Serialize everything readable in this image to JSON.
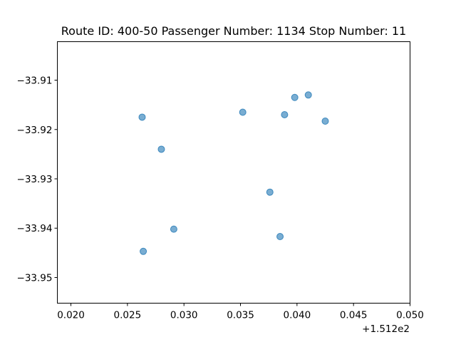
{
  "chart_data": {
    "type": "scatter",
    "title": "Route ID: 400-50  Passenger Number: 1134  Stop Number: 11",
    "xlabel": "",
    "ylabel": "",
    "x_offset_label": "+1.512e2",
    "xlim": [
      0.0188,
      0.05
    ],
    "ylim": [
      -33.9552,
      -33.9022
    ],
    "x_ticks": [
      0.02,
      0.025,
      0.03,
      0.035,
      0.04,
      0.045,
      0.05
    ],
    "x_tick_labels": [
      "0.020",
      "0.025",
      "0.030",
      "0.035",
      "0.040",
      "0.045",
      "0.050"
    ],
    "y_ticks": [
      -33.91,
      -33.92,
      -33.93,
      -33.94,
      -33.95
    ],
    "y_tick_labels": [
      "−33.91",
      "−33.92",
      "−33.93",
      "−33.94",
      "−33.95"
    ],
    "grid": false,
    "legend": "none",
    "point_color": "#1f77b4",
    "x": [
      0.0263,
      0.028,
      0.0264,
      0.0291,
      0.0352,
      0.0376,
      0.0385,
      0.0389,
      0.0398,
      0.041,
      0.0425
    ],
    "y": [
      -33.9175,
      -33.924,
      -33.9447,
      -33.9402,
      -33.9165,
      -33.9327,
      -33.9417,
      -33.917,
      -33.9135,
      -33.913,
      -33.9183
    ]
  }
}
